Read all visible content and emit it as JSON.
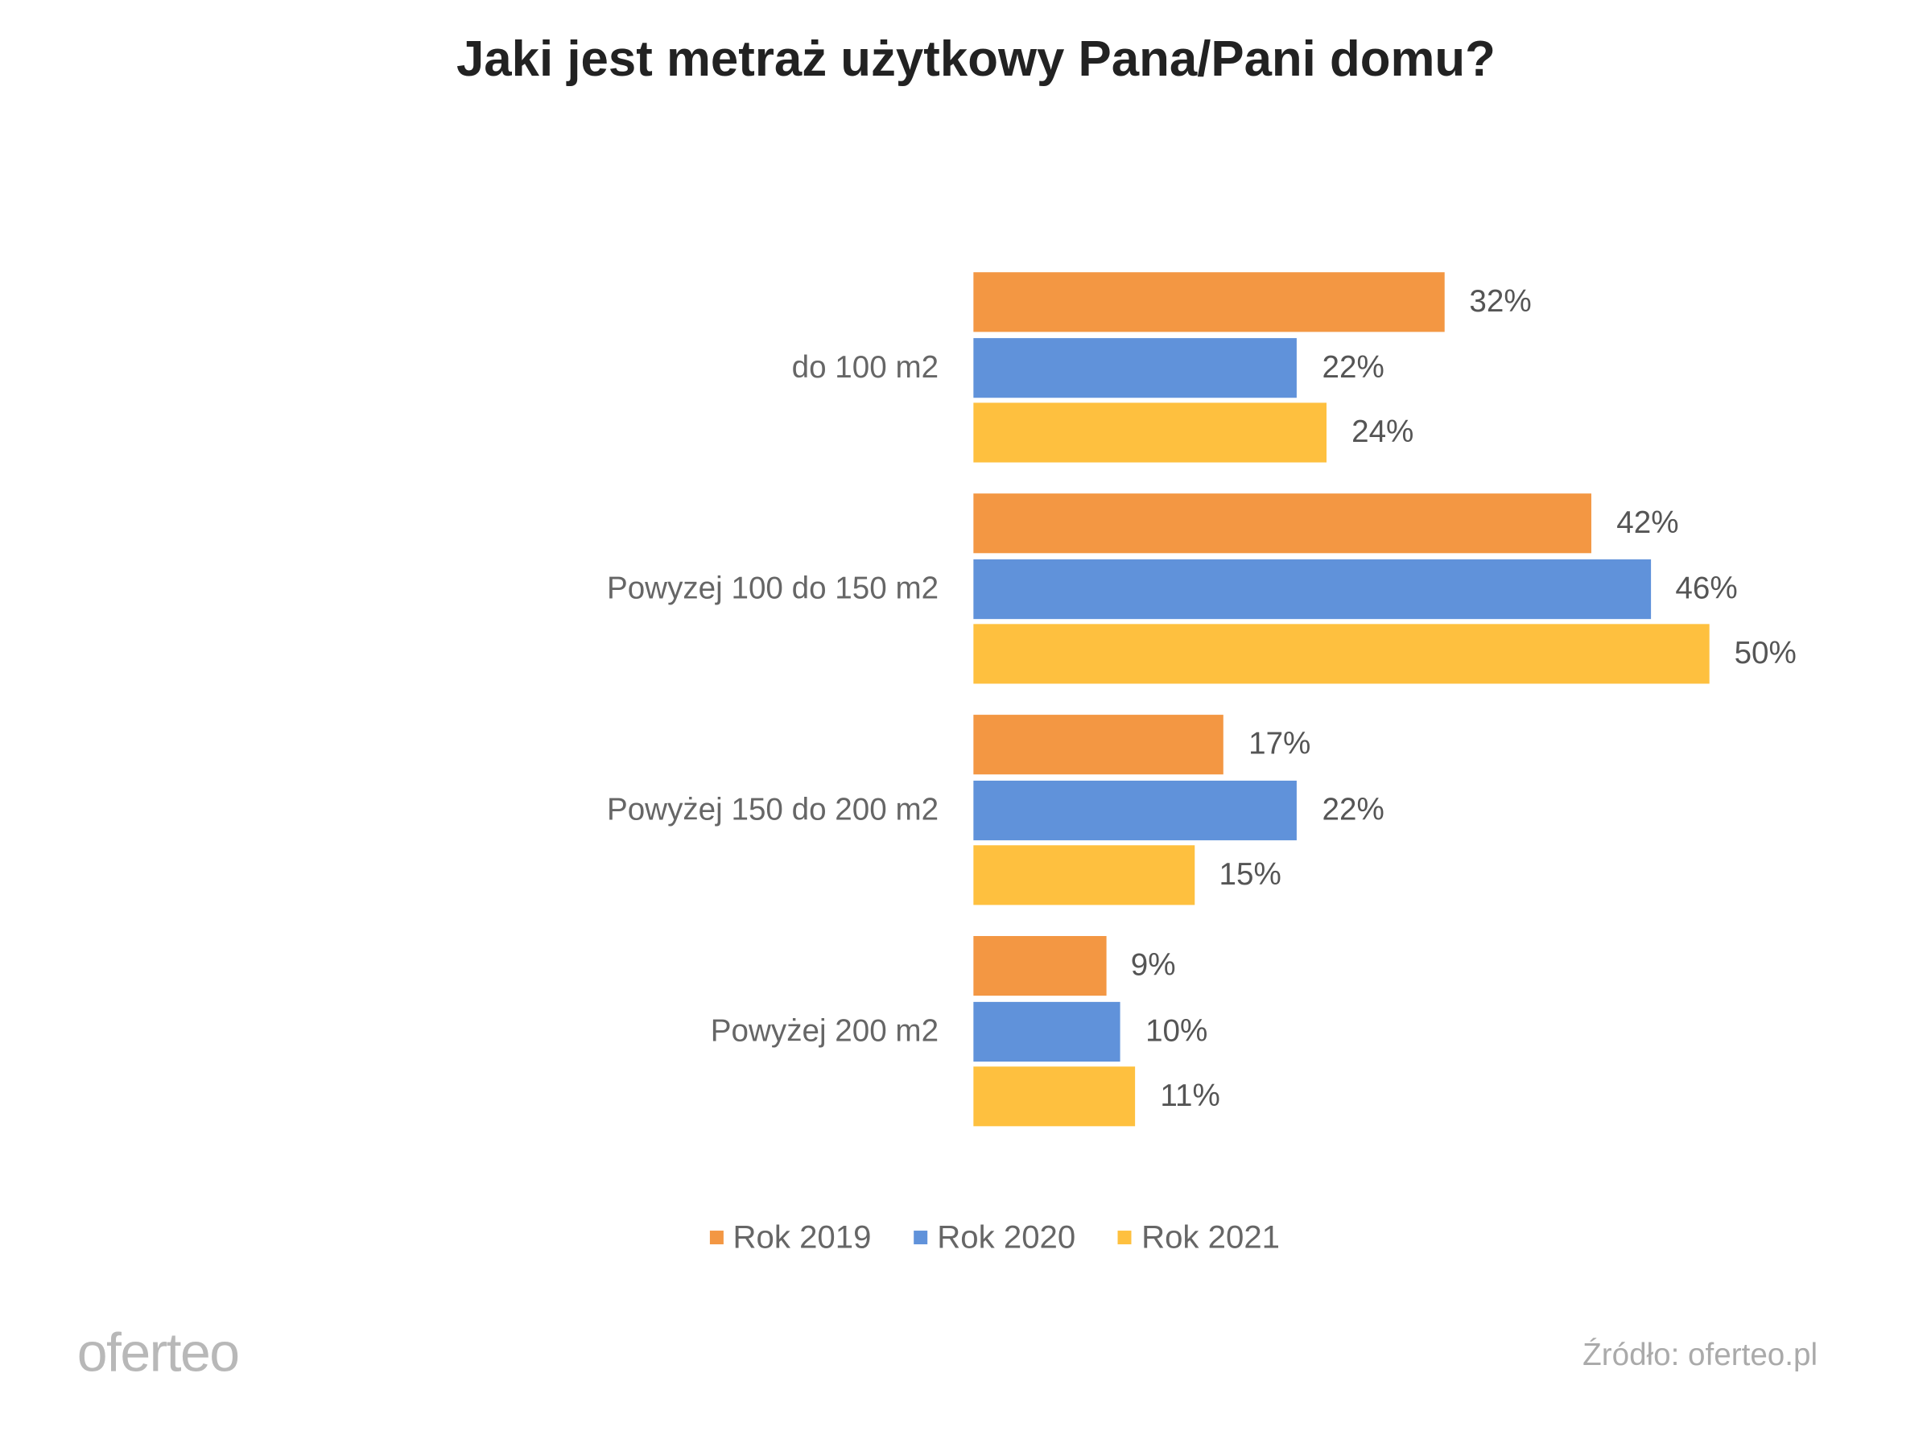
{
  "chart_data": {
    "type": "bar",
    "orientation": "horizontal",
    "title": "Jaki jest metraż użytkowy Pana/Pani domu?",
    "categories": [
      "do 100 m2",
      "Powyzej 100 do 150 m2",
      "Powyżej 150 do 200 m2",
      "Powyżej 200 m2"
    ],
    "series": [
      {
        "name": "Rok 2019",
        "color": "#F39743",
        "values": [
          32,
          42,
          17,
          9
        ]
      },
      {
        "name": "Rok 2020",
        "color": "#6092DA",
        "values": [
          22,
          46,
          22,
          10
        ]
      },
      {
        "name": "Rok 2021",
        "color": "#FEC03F",
        "values": [
          24,
          50,
          15,
          11
        ]
      }
    ],
    "value_suffix": "%",
    "xlim": [
      0,
      50
    ],
    "grid": false,
    "axes_visible": false,
    "legend_position": "bottom"
  },
  "footer": {
    "logo": "oferteo",
    "source": "Źródło: oferteo.pl"
  }
}
